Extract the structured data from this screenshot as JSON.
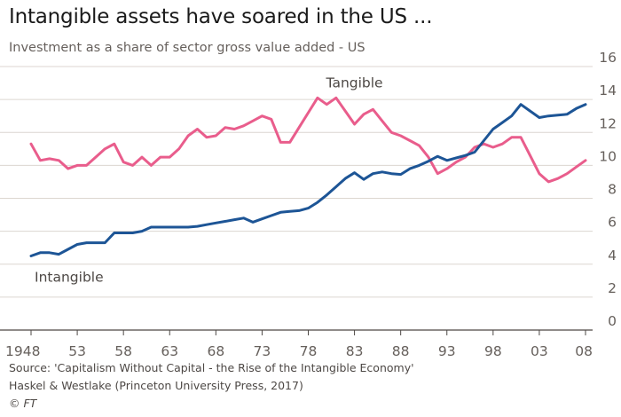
{
  "header": {
    "title": "Intangible assets have soared in the US ...",
    "subtitle": "Investment as a share of sector gross value added - US"
  },
  "footer": {
    "source_line1": "Source: 'Capitalism Without Capital - the Rise of the Intangible Economy'",
    "source_line2": "Haskel & Westlake (Princeton University Press, 2017)",
    "credit": "© FT"
  },
  "chart_data": {
    "type": "line",
    "title": "Intangible assets have soared in the US ...",
    "subtitle": "Investment as a share of sector gross value added - US",
    "xlim": [
      1948,
      2008
    ],
    "ylim": [
      0,
      16
    ],
    "x_tick_values": [
      1948,
      1953,
      1958,
      1963,
      1968,
      1973,
      1978,
      1983,
      1988,
      1993,
      1998,
      2003,
      2008
    ],
    "x_tick_labels": [
      "1948",
      "53",
      "58",
      "63",
      "68",
      "73",
      "78",
      "83",
      "88",
      "93",
      "98",
      "03",
      "08"
    ],
    "y_ticks": [
      0,
      2,
      4,
      6,
      8,
      10,
      12,
      14,
      16
    ],
    "grid": true,
    "y_axis_side": "right",
    "x": [
      1948,
      1949,
      1950,
      1951,
      1952,
      1953,
      1954,
      1955,
      1956,
      1957,
      1958,
      1959,
      1960,
      1961,
      1962,
      1963,
      1964,
      1965,
      1966,
      1967,
      1968,
      1969,
      1970,
      1971,
      1972,
      1973,
      1974,
      1975,
      1976,
      1977,
      1978,
      1979,
      1980,
      1981,
      1982,
      1983,
      1984,
      1985,
      1986,
      1987,
      1988,
      1989,
      1990,
      1991,
      1992,
      1993,
      1994,
      1995,
      1996,
      1997,
      1998,
      1999,
      2000,
      2001,
      2002,
      2003,
      2004,
      2005,
      2006,
      2007,
      2008
    ],
    "series": [
      {
        "name": "Tangible",
        "color": "#e95d8c",
        "values": [
          11.3,
          10.3,
          10.4,
          10.3,
          9.8,
          10.0,
          10.0,
          10.5,
          11.0,
          11.3,
          10.2,
          10.0,
          10.5,
          10.0,
          10.5,
          10.5,
          11.0,
          11.8,
          12.2,
          11.7,
          11.8,
          12.3,
          12.2,
          12.4,
          12.7,
          13.0,
          12.8,
          11.4,
          11.4,
          12.3,
          13.2,
          14.1,
          13.7,
          14.1,
          13.3,
          12.5,
          13.1,
          13.4,
          12.7,
          12.0,
          11.8,
          11.5,
          11.2,
          10.5,
          9.5,
          9.8,
          10.2,
          10.5,
          11.1,
          11.3,
          11.1,
          11.3,
          11.7,
          11.7,
          10.6,
          9.5,
          9.0,
          9.2,
          9.5,
          9.9,
          10.3
        ]
      },
      {
        "name": "Intangible",
        "color": "#1d5596",
        "values": [
          4.5,
          4.7,
          4.7,
          4.6,
          4.9,
          5.2,
          5.3,
          5.3,
          5.3,
          5.9,
          5.9,
          5.9,
          6.0,
          6.25,
          6.25,
          6.25,
          6.25,
          6.25,
          6.3,
          6.4,
          6.5,
          6.6,
          6.7,
          6.8,
          6.55,
          6.75,
          6.95,
          7.15,
          7.2,
          7.25,
          7.4,
          7.75,
          8.2,
          8.7,
          9.2,
          9.55,
          9.15,
          9.5,
          9.6,
          9.5,
          9.45,
          9.8,
          10.0,
          10.25,
          10.55,
          10.3,
          10.45,
          10.6,
          10.8,
          11.5,
          12.2,
          12.6,
          13.0,
          13.7,
          13.3,
          12.9,
          13.0,
          13.05,
          13.1,
          13.45,
          13.7
        ]
      }
    ],
    "annotations": [
      "Tangible",
      "Intangible"
    ]
  }
}
